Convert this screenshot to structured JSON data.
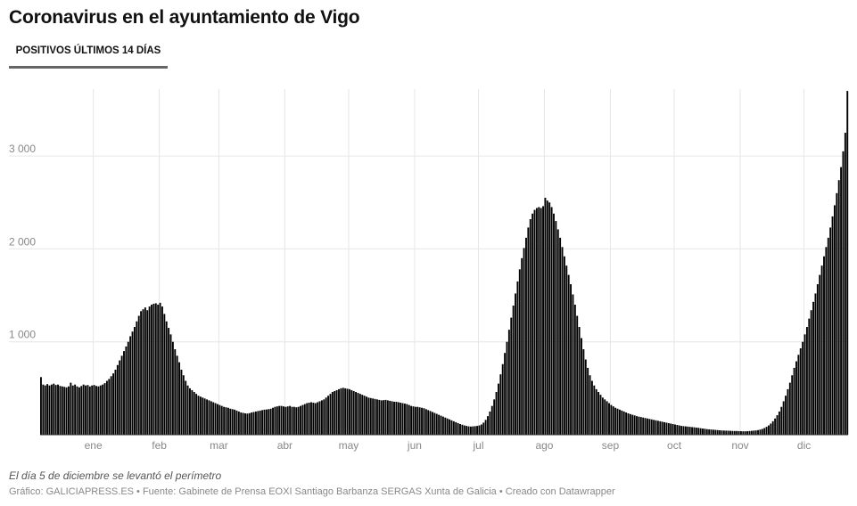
{
  "title": "Coronavirus en el ayuntamiento de Vigo",
  "tab": {
    "label": "POSITIVOS ÚLTIMOS 14 DÍAS",
    "active": true
  },
  "note": "El día 5 de diciembre se levantó el perímetro",
  "credits": "Gráfico: GALICIAPRESS.ES • Fuente: Gabinete de Prensa EOXI Santiago Barbanza SERGAS Xunta de Galicia • Creado con Datawrapper",
  "colors": {
    "bars": "#000000",
    "grid": "#e6e6e6",
    "tab_underline": "#666666"
  },
  "chart_data": {
    "type": "bar",
    "title": "",
    "xlabel": "",
    "ylabel": "",
    "ylim": [
      0,
      3700
    ],
    "grid": true,
    "x_tick_labels": [
      "ene",
      "feb",
      "mar",
      "abr",
      "may",
      "jun",
      "jul",
      "ago",
      "sep",
      "oct",
      "nov",
      "dic"
    ],
    "y_ticks": [
      {
        "value": 1000,
        "label": "1 000"
      },
      {
        "value": 2000,
        "label": "2 000"
      },
      {
        "value": 3000,
        "label": "3 000"
      }
    ],
    "months": [
      {
        "month": "2020-12",
        "first_day": 7,
        "values": [
          620,
          540,
          530,
          545,
          530,
          540,
          550,
          535,
          540,
          525,
          520,
          515,
          510,
          520,
          560,
          530,
          540,
          520,
          510,
          525,
          540,
          530,
          535,
          520,
          530
        ]
      },
      {
        "month": "2021-01",
        "first_day": 1,
        "values": [
          535,
          525,
          520,
          530,
          540,
          555,
          580,
          600,
          630,
          660,
          700,
          750,
          800,
          850,
          900,
          950,
          1000,
          1060,
          1110,
          1160,
          1220,
          1280,
          1330,
          1350,
          1370,
          1340,
          1380,
          1400,
          1410,
          1415,
          1400
        ]
      },
      {
        "month": "2021-02",
        "first_day": 1,
        "values": [
          1420,
          1380,
          1300,
          1220,
          1150,
          1080,
          1000,
          920,
          850,
          780,
          700,
          640,
          580,
          530,
          500,
          480,
          460,
          440,
          420,
          410,
          400,
          390,
          380,
          370,
          360,
          350,
          340,
          330
        ]
      },
      {
        "month": "2021-03",
        "first_day": 1,
        "values": [
          320,
          310,
          300,
          295,
          290,
          280,
          275,
          270,
          260,
          250,
          240,
          235,
          230,
          228,
          232,
          240,
          245,
          250,
          255,
          260,
          265,
          270,
          272,
          275,
          280,
          290,
          300,
          305,
          310,
          310,
          305
        ]
      },
      {
        "month": "2021-04",
        "first_day": 1,
        "values": [
          300,
          305,
          310,
          300,
          300,
          295,
          300,
          310,
          320,
          330,
          340,
          345,
          350,
          345,
          340,
          350,
          360,
          370,
          380,
          400,
          420,
          440,
          460,
          470,
          480,
          490,
          500,
          505,
          500,
          495
        ]
      },
      {
        "month": "2021-05",
        "first_day": 1,
        "values": [
          490,
          480,
          470,
          460,
          450,
          440,
          430,
          420,
          410,
          400,
          395,
          390,
          385,
          380,
          375,
          370,
          372,
          375,
          370,
          365,
          360,
          355,
          355,
          350,
          345,
          340,
          335,
          330,
          320,
          310,
          305
        ]
      },
      {
        "month": "2021-06",
        "first_day": 1,
        "values": [
          300,
          300,
          295,
          290,
          285,
          275,
          265,
          255,
          245,
          235,
          225,
          215,
          205,
          195,
          185,
          175,
          165,
          155,
          145,
          135,
          125,
          115,
          108,
          100,
          95,
          90,
          88,
          90,
          92,
          95
        ]
      },
      {
        "month": "2021-07",
        "first_day": 1,
        "values": [
          100,
          110,
          130,
          160,
          200,
          250,
          310,
          380,
          460,
          550,
          650,
          760,
          880,
          1000,
          1130,
          1260,
          1390,
          1520,
          1650,
          1780,
          1900,
          2010,
          2120,
          2230,
          2320,
          2380,
          2420,
          2440,
          2450,
          2440,
          2460
        ]
      },
      {
        "month": "2021-08",
        "first_day": 1,
        "values": [
          2550,
          2520,
          2500,
          2450,
          2380,
          2300,
          2210,
          2120,
          2020,
          1920,
          1820,
          1720,
          1620,
          1510,
          1400,
          1280,
          1160,
          1040,
          920,
          810,
          720,
          640,
          580,
          530,
          490,
          460,
          430,
          400,
          380,
          360,
          340
        ]
      },
      {
        "month": "2021-09",
        "first_day": 1,
        "values": [
          320,
          305,
          290,
          280,
          270,
          260,
          250,
          240,
          230,
          222,
          215,
          208,
          200,
          195,
          190,
          185,
          180,
          175,
          170,
          165,
          160,
          155,
          150,
          145,
          140,
          135,
          130,
          125,
          120,
          115
        ]
      },
      {
        "month": "2021-10",
        "first_day": 1,
        "values": [
          110,
          105,
          100,
          95,
          92,
          90,
          88,
          85,
          82,
          80,
          77,
          74,
          70,
          67,
          64,
          60,
          58,
          56,
          54,
          52,
          50,
          48,
          46,
          45,
          44,
          43,
          42,
          41,
          40,
          40,
          39
        ]
      },
      {
        "month": "2021-11",
        "first_day": 1,
        "values": [
          38,
          37,
          37,
          38,
          40,
          42,
          44,
          46,
          50,
          55,
          62,
          72,
          85,
          100,
          120,
          145,
          175,
          210,
          250,
          300,
          360,
          420,
          490,
          560,
          640,
          720,
          790,
          860,
          930,
          1000
        ]
      },
      {
        "month": "2021-12",
        "first_day": 1,
        "values": [
          1080,
          1160,
          1250,
          1340,
          1430,
          1520,
          1620,
          1720,
          1820,
          1920,
          2020,
          2120,
          2230,
          2350,
          2470,
          2600,
          2740,
          2880,
          3050,
          3250,
          3700
        ]
      }
    ]
  }
}
